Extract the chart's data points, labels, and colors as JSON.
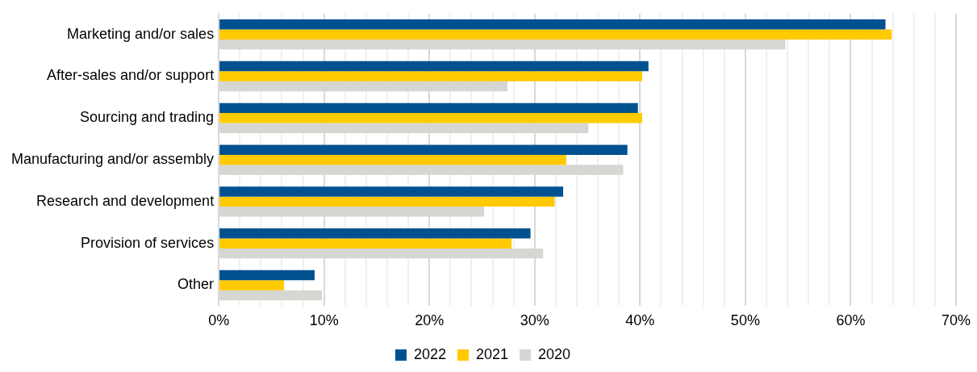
{
  "chart_data": {
    "type": "bar",
    "orientation": "horizontal",
    "categories": [
      "Marketing and/or sales",
      "After-sales and/or support",
      "Sourcing and trading",
      "Manufacturing and/or assembly",
      "Research and development",
      "Provision of services",
      "Other"
    ],
    "series": [
      {
        "name": "2022",
        "color": "#00518f",
        "values": [
          63.3,
          40.8,
          39.8,
          38.8,
          32.7,
          29.6,
          9.1
        ]
      },
      {
        "name": "2021",
        "color": "#ffcb00",
        "values": [
          63.9,
          40.2,
          40.2,
          33.0,
          31.9,
          27.8,
          6.2
        ]
      },
      {
        "name": "2020",
        "color": "#d6d6d2",
        "values": [
          53.8,
          27.4,
          35.1,
          38.4,
          25.2,
          30.8,
          9.8
        ]
      }
    ],
    "xlim": [
      0,
      70
    ],
    "xticks": [
      {
        "value": 0,
        "label": "0%"
      },
      {
        "value": 2,
        "label": null
      },
      {
        "value": 4,
        "label": null
      },
      {
        "value": 6,
        "label": null
      },
      {
        "value": 8,
        "label": null
      },
      {
        "value": 10,
        "label": "10%"
      },
      {
        "value": 12,
        "label": null
      },
      {
        "value": 14,
        "label": null
      },
      {
        "value": 16,
        "label": null
      },
      {
        "value": 18,
        "label": null
      },
      {
        "value": 20,
        "label": "20%"
      },
      {
        "value": 22,
        "label": null
      },
      {
        "value": 24,
        "label": null
      },
      {
        "value": 26,
        "label": null
      },
      {
        "value": 28,
        "label": null
      },
      {
        "value": 30,
        "label": "30%"
      },
      {
        "value": 32,
        "label": null
      },
      {
        "value": 34,
        "label": null
      },
      {
        "value": 36,
        "label": null
      },
      {
        "value": 38,
        "label": null
      },
      {
        "value": 40,
        "label": "40%"
      },
      {
        "value": 42,
        "label": null
      },
      {
        "value": 44,
        "label": null
      },
      {
        "value": 46,
        "label": null
      },
      {
        "value": 48,
        "label": null
      },
      {
        "value": 50,
        "label": "50%"
      },
      {
        "value": 52,
        "label": null
      },
      {
        "value": 54,
        "label": null
      },
      {
        "value": 56,
        "label": null
      },
      {
        "value": 58,
        "label": null
      },
      {
        "value": 60,
        "label": "60%"
      },
      {
        "value": 62,
        "label": null
      },
      {
        "value": 64,
        "label": null
      },
      {
        "value": 66,
        "label": null
      },
      {
        "value": 68,
        "label": null
      },
      {
        "value": 70,
        "label": "70%"
      }
    ],
    "grid": "x",
    "legend": "bottom"
  }
}
